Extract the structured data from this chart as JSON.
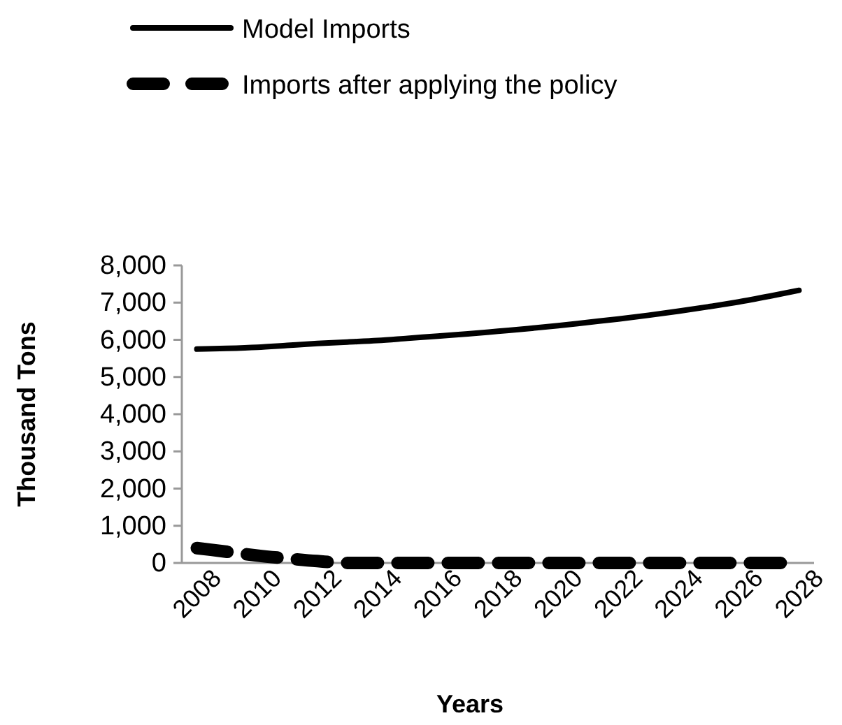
{
  "chart_data": {
    "type": "line",
    "xlabel": "Years",
    "ylabel": "Thousand Tons",
    "categories": [
      "2008",
      null,
      "2010",
      null,
      "2012",
      null,
      "2014",
      null,
      "2016",
      null,
      "2018",
      null,
      "2020",
      null,
      "2022",
      null,
      "2024",
      null,
      "2026",
      null,
      "2028"
    ],
    "ylim": [
      0,
      8000
    ],
    "yticks": [
      0,
      {
        "value": 1000,
        "label": "1,000"
      },
      {
        "value": 2000,
        "label": "2,000"
      },
      {
        "value": 3000,
        "label": "3,000"
      },
      {
        "value": 4000,
        "label": "4,000"
      },
      {
        "value": 5000,
        "label": "5,000"
      },
      {
        "value": 6000,
        "label": "6,000"
      },
      {
        "value": 7000,
        "label": "7,000"
      },
      {
        "value": 8000,
        "label": "8,000"
      }
    ],
    "grid": false,
    "legend": "top",
    "series": [
      {
        "name": "Model Imports",
        "color": "#000000",
        "line_style": "solid",
        "values": [
          5750,
          5770,
          5800,
          5850,
          5900,
          5940,
          5980,
          6040,
          6100,
          6160,
          6230,
          6300,
          6380,
          6470,
          6560,
          6660,
          6770,
          6890,
          7020,
          7170,
          7330
        ]
      },
      {
        "name": "Imports after applying the policy",
        "color": "#000000",
        "line_style": "dashed",
        "values": [
          400,
          300,
          200,
          120,
          50,
          0,
          0,
          0,
          0,
          0,
          0,
          0,
          0,
          0,
          0,
          0,
          0,
          0,
          0,
          0,
          0
        ]
      }
    ]
  }
}
